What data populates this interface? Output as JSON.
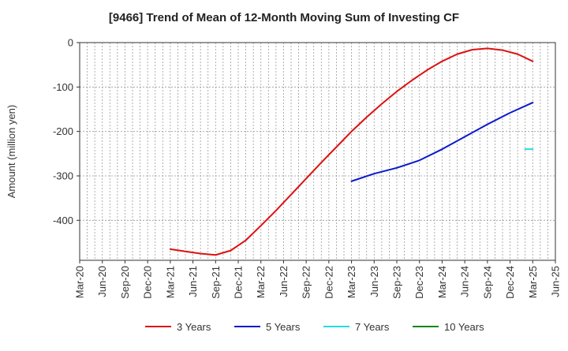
{
  "chart_data": {
    "type": "line",
    "title": "[9466]  Trend of Mean of 12-Month Moving Sum of Investing CF",
    "xlabel": "",
    "ylabel": "Amount (million yen)",
    "ylim": [
      -490,
      0
    ],
    "yticks": [
      0,
      -100,
      -200,
      -300,
      -400
    ],
    "xlim": [
      "2020-03",
      "2025-06"
    ],
    "xticks": [
      "Mar-20",
      "Jun-20",
      "Sep-20",
      "Dec-20",
      "Mar-21",
      "Jun-21",
      "Sep-21",
      "Dec-21",
      "Mar-22",
      "Jun-22",
      "Sep-22",
      "Dec-22",
      "Mar-23",
      "Jun-23",
      "Sep-23",
      "Dec-23",
      "Mar-24",
      "Jun-24",
      "Sep-24",
      "Dec-24",
      "Mar-25",
      "Jun-25"
    ],
    "grid": true,
    "legend_position": "bottom",
    "series": [
      {
        "name": "3 Years",
        "color": "#dd1111",
        "points": [
          [
            "2021-03",
            -465
          ],
          [
            "2021-05",
            -470
          ],
          [
            "2021-07",
            -475
          ],
          [
            "2021-09",
            -478
          ],
          [
            "2021-11",
            -468
          ],
          [
            "2022-01",
            -445
          ],
          [
            "2022-03",
            -412
          ],
          [
            "2022-05",
            -378
          ],
          [
            "2022-07",
            -342
          ],
          [
            "2022-09",
            -306
          ],
          [
            "2022-11",
            -270
          ],
          [
            "2023-01",
            -235
          ],
          [
            "2023-03",
            -200
          ],
          [
            "2023-05",
            -168
          ],
          [
            "2023-07",
            -138
          ],
          [
            "2023-09",
            -110
          ],
          [
            "2023-11",
            -85
          ],
          [
            "2024-01",
            -62
          ],
          [
            "2024-03",
            -42
          ],
          [
            "2024-05",
            -26
          ],
          [
            "2024-07",
            -16
          ],
          [
            "2024-09",
            -13
          ],
          [
            "2024-11",
            -17
          ],
          [
            "2025-01",
            -26
          ],
          [
            "2025-03",
            -42
          ]
        ]
      },
      {
        "name": "5 Years",
        "color": "#0a1acc",
        "points": [
          [
            "2023-03",
            -312
          ],
          [
            "2023-06",
            -295
          ],
          [
            "2023-09",
            -282
          ],
          [
            "2023-12",
            -265
          ],
          [
            "2024-03",
            -240
          ],
          [
            "2024-06",
            -212
          ],
          [
            "2024-09",
            -184
          ],
          [
            "2024-12",
            -158
          ],
          [
            "2025-03",
            -135
          ]
        ]
      },
      {
        "name": "7 Years",
        "color": "#22dddd",
        "points": [
          [
            "2025-02",
            -240
          ],
          [
            "2025-03",
            -240
          ]
        ]
      },
      {
        "name": "10 Years",
        "color": "#118811",
        "points": []
      }
    ]
  }
}
